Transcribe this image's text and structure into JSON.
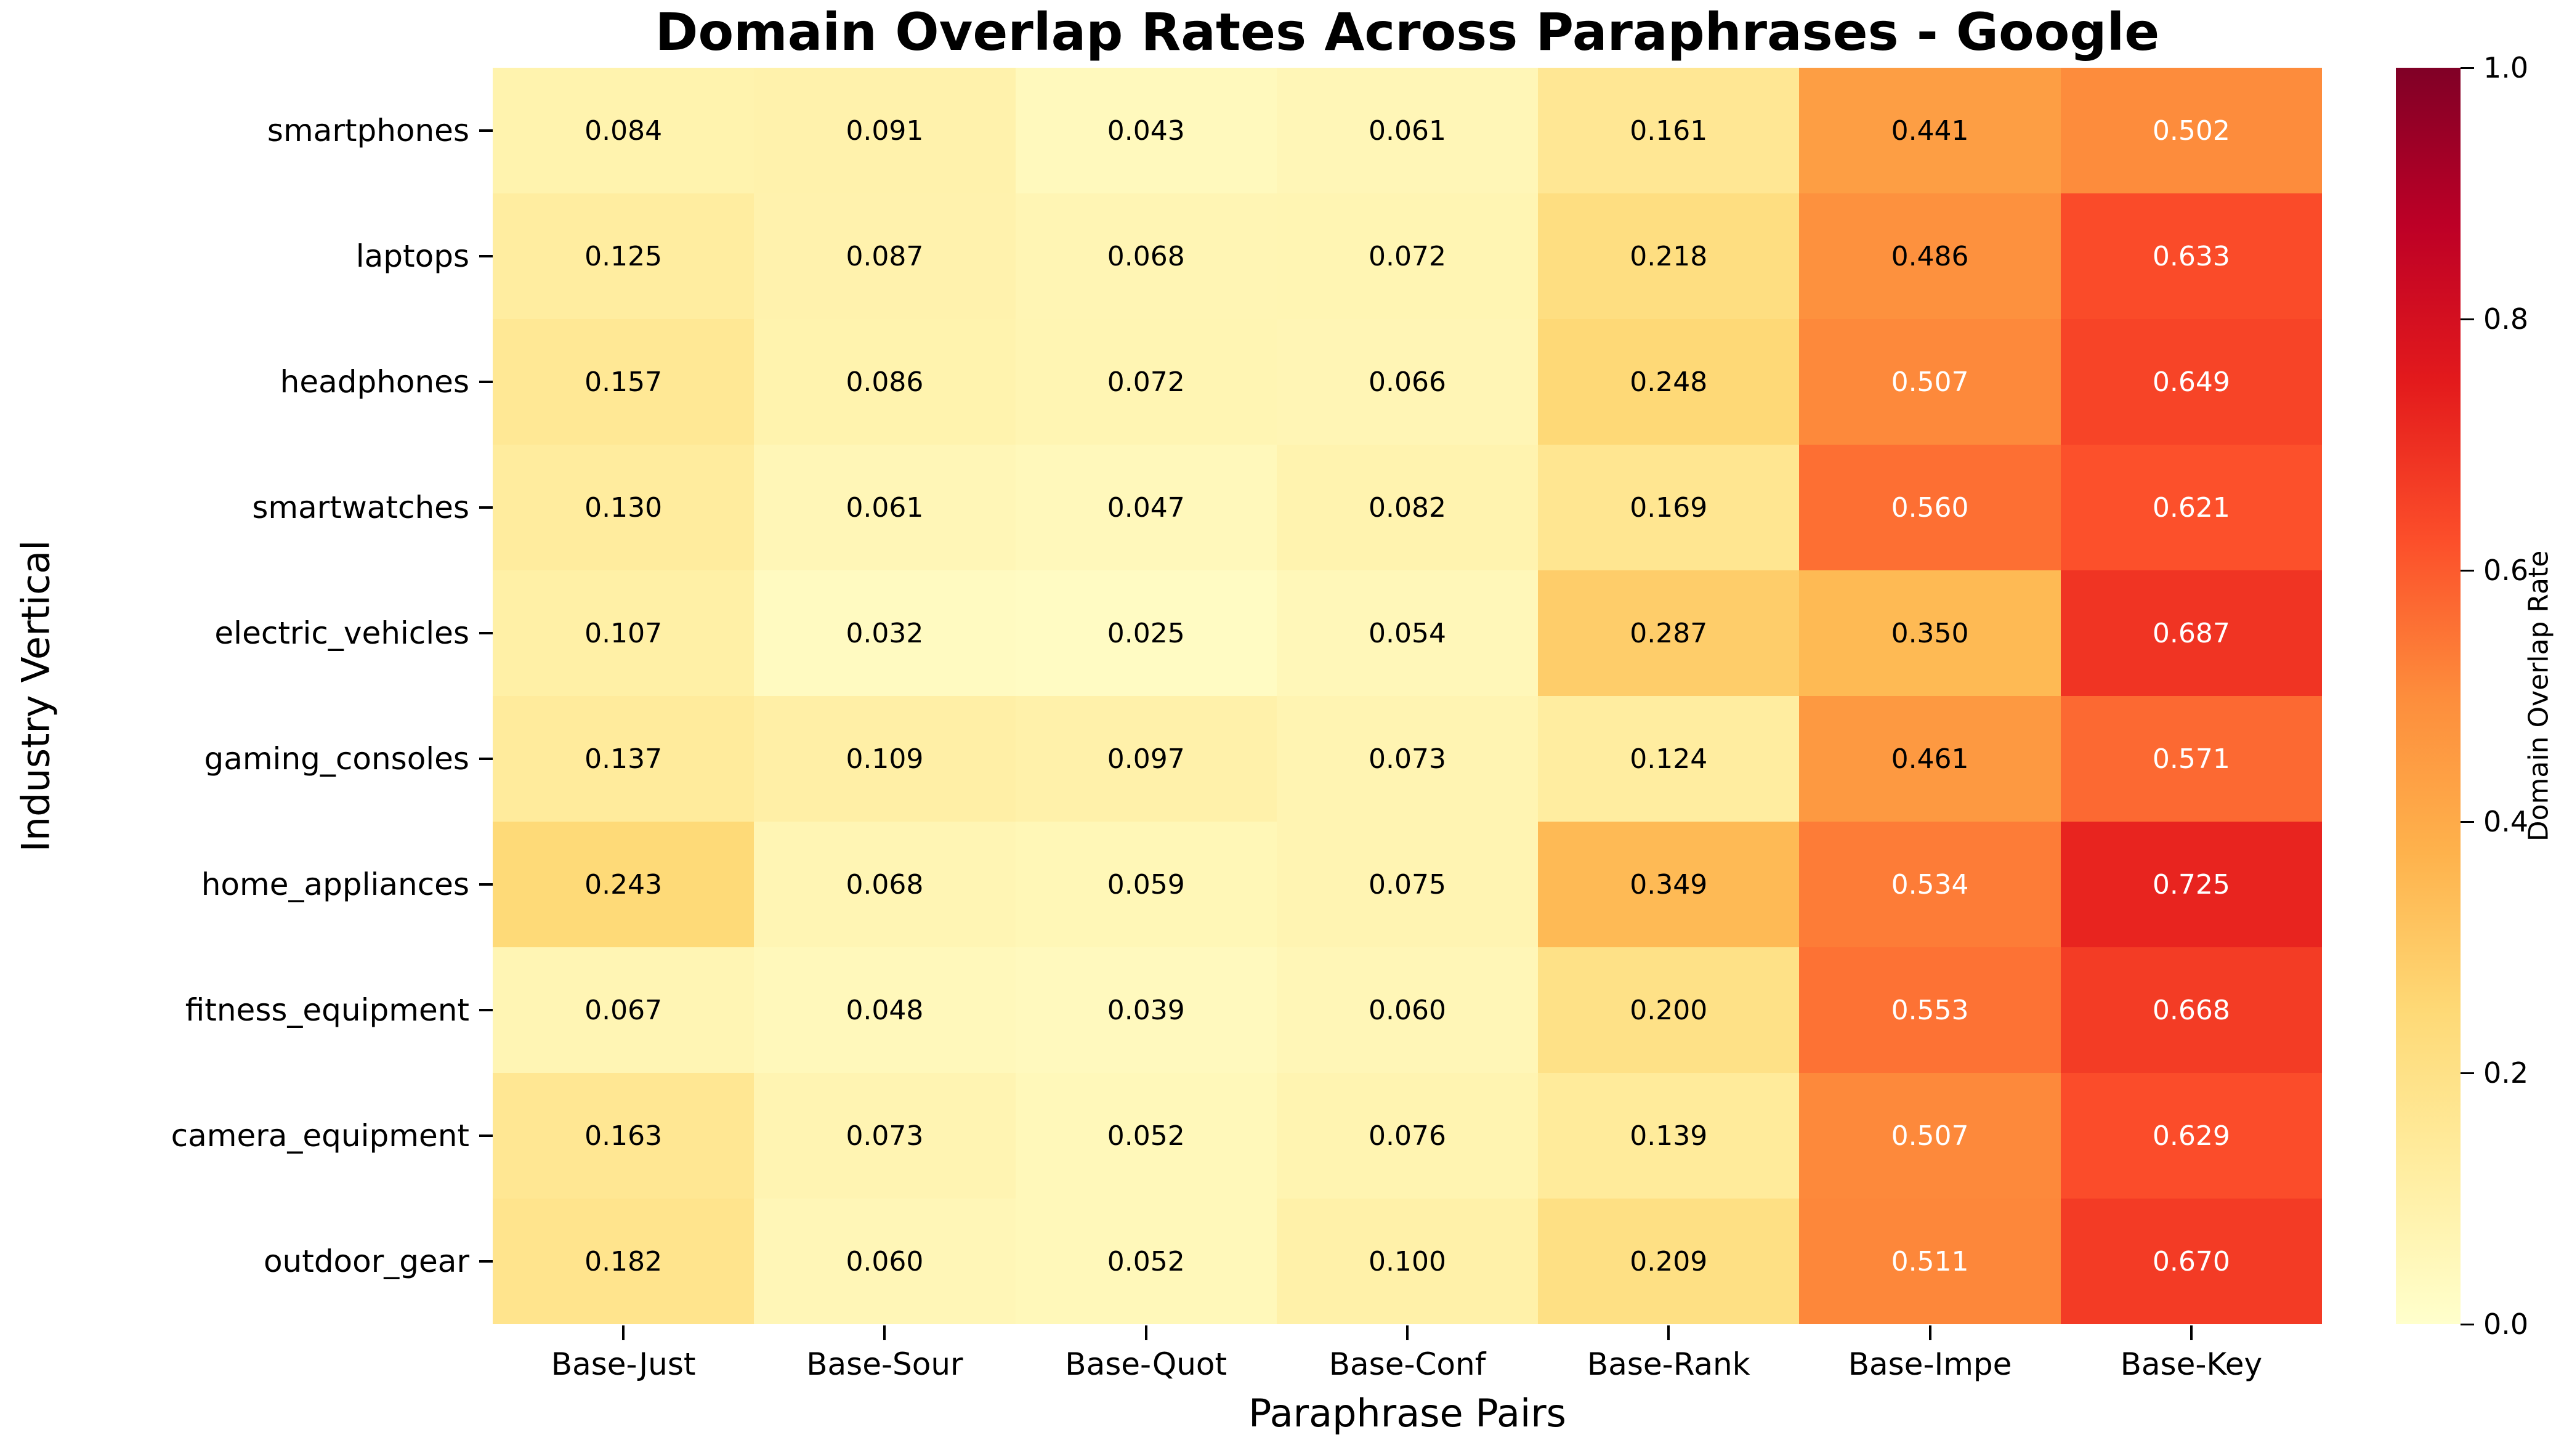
{
  "chart_data": {
    "type": "heatmap",
    "title": "Domain Overlap Rates Across Paraphrases - Google",
    "xlabel": "Paraphrase Pairs",
    "ylabel": "Industry Vertical",
    "x_categories": [
      "Base-Just",
      "Base-Sour",
      "Base-Quot",
      "Base-Conf",
      "Base-Rank",
      "Base-Impe",
      "Base-Key"
    ],
    "y_categories": [
      "smartphones",
      "laptops",
      "headphones",
      "smartwatches",
      "electric_vehicles",
      "gaming_consoles",
      "home_appliances",
      "fitness_equipment",
      "camera_equipment",
      "outdoor_gear"
    ],
    "values": [
      [
        0.084,
        0.091,
        0.043,
        0.061,
        0.161,
        0.441,
        0.502
      ],
      [
        0.125,
        0.087,
        0.068,
        0.072,
        0.218,
        0.486,
        0.633
      ],
      [
        0.157,
        0.086,
        0.072,
        0.066,
        0.248,
        0.507,
        0.649
      ],
      [
        0.13,
        0.061,
        0.047,
        0.082,
        0.169,
        0.56,
        0.621
      ],
      [
        0.107,
        0.032,
        0.025,
        0.054,
        0.287,
        0.35,
        0.687
      ],
      [
        0.137,
        0.109,
        0.097,
        0.073,
        0.124,
        0.461,
        0.571
      ],
      [
        0.243,
        0.068,
        0.059,
        0.075,
        0.349,
        0.534,
        0.725
      ],
      [
        0.067,
        0.048,
        0.039,
        0.06,
        0.2,
        0.553,
        0.668
      ],
      [
        0.163,
        0.073,
        0.052,
        0.076,
        0.139,
        0.507,
        0.629
      ],
      [
        0.182,
        0.06,
        0.052,
        0.1,
        0.209,
        0.511,
        0.67
      ]
    ],
    "value_decimals": 3,
    "vmin": 0.0,
    "vmax": 1.0,
    "grid": "off",
    "colormap": {
      "name": "YlOrRd",
      "stops": [
        "#ffffcc",
        "#ffeda0",
        "#fed976",
        "#feb24c",
        "#fd8d3c",
        "#fc4e2a",
        "#e31a1c",
        "#bd0026",
        "#800026"
      ]
    },
    "annotation_colors": {
      "dark_text": "#000000",
      "light_text": "#ffffff"
    },
    "colorbar": {
      "label": "Domain Overlap Rate",
      "tick_labels": [
        "0.0",
        "0.2",
        "0.4",
        "0.6",
        "0.8",
        "1.0"
      ],
      "tick_values": [
        0.0,
        0.2,
        0.4,
        0.6,
        0.8,
        1.0
      ],
      "position": "right"
    }
  }
}
